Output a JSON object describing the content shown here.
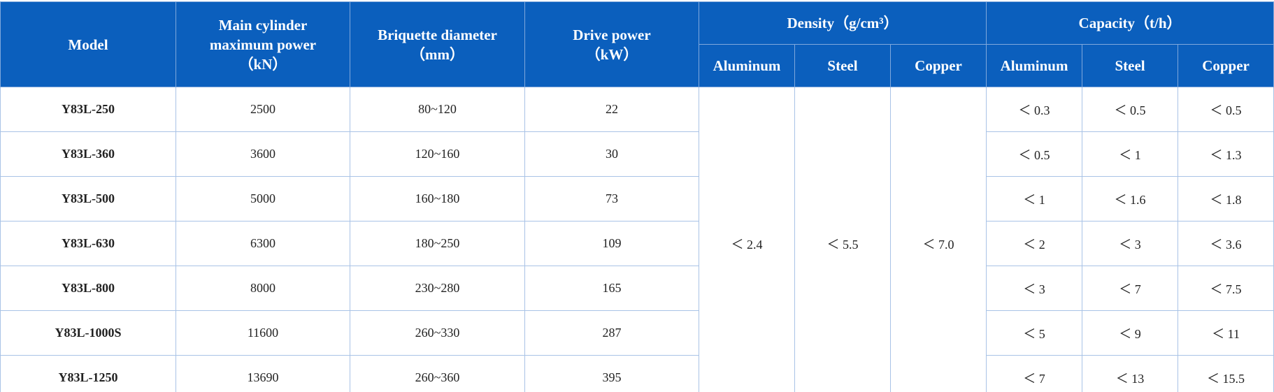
{
  "header": {
    "model": "Model",
    "main_cylinder": [
      "Main cylinder",
      "maximum power",
      "（kN）"
    ],
    "briquette": [
      "Briquette diameter",
      "（mm）"
    ],
    "drive": [
      "Drive power",
      "（kW）"
    ],
    "density": "Density（g/cm³）",
    "capacity": "Capacity（t/h）",
    "materials": [
      "Aluminum",
      "Steel",
      "Copper"
    ]
  },
  "density_values": [
    "＜ 2.4",
    "＜ 5.5",
    "＜ 7.0"
  ],
  "rows": [
    [
      "Y83L-250",
      2500,
      "80~120",
      22,
      "＜ 0.3",
      "＜ 0.5",
      "＜ 0.5"
    ],
    [
      "Y83L-360",
      3600,
      "120~160",
      30,
      "＜ 0.5",
      "＜ 1",
      "＜ 1.3"
    ],
    [
      "Y83L-500",
      5000,
      "160~180",
      73,
      "＜ 1",
      "＜ 1.6",
      "＜ 1.8"
    ],
    [
      "Y83L-630",
      6300,
      "180~250",
      109,
      "＜ 2",
      "＜ 3",
      "＜ 3.6"
    ],
    [
      "Y83L-800",
      8000,
      "230~280",
      165,
      "＜ 3",
      "＜ 7",
      "＜ 7.5"
    ],
    [
      "Y83L-1000S",
      11600,
      "260~330",
      287,
      "＜ 5",
      "＜ 9",
      "＜ 11"
    ],
    [
      "Y83L-1250",
      13690,
      "260~360",
      395,
      "＜ 7",
      "＜ 13",
      "＜ 15.5"
    ]
  ]
}
